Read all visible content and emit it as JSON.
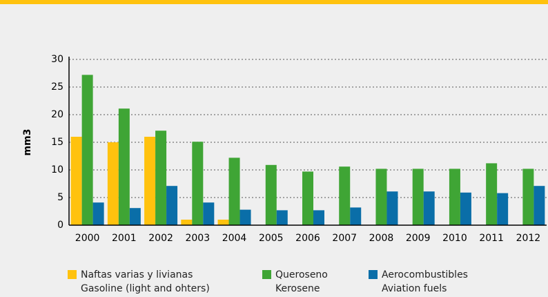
{
  "chart_data": {
    "type": "bar",
    "y_label": "mm3",
    "categories": [
      "2000",
      "2001",
      "2002",
      "2003",
      "2004",
      "2005",
      "2006",
      "2007",
      "2008",
      "2009",
      "2010",
      "2011",
      "2012"
    ],
    "series": [
      {
        "name": "Naftas varias y livianas\nGasoline (light and ohters)",
        "color": "#ffc20e",
        "values": [
          16,
          15,
          16,
          1,
          1,
          null,
          null,
          null,
          null,
          null,
          null,
          null,
          null
        ]
      },
      {
        "name": "Queroseno\nKerosene",
        "color": "#3fa535",
        "values": [
          27.2,
          21.1,
          17.1,
          15.1,
          12.2,
          10.9,
          9.7,
          10.6,
          10.2,
          10.2,
          10.2,
          11.2,
          10.2
        ]
      },
      {
        "name": "Aerocombustibles\nAviation fuels",
        "color": "#0a6ea8",
        "values": [
          4.1,
          3.1,
          7.1,
          4.1,
          2.8,
          2.7,
          2.7,
          3.2,
          6.1,
          6.1,
          5.9,
          5.8,
          7.1
        ]
      }
    ],
    "ylim": [
      0,
      30
    ],
    "yticks": [
      0,
      5,
      10,
      15,
      20,
      25,
      30
    ],
    "grid": true
  }
}
